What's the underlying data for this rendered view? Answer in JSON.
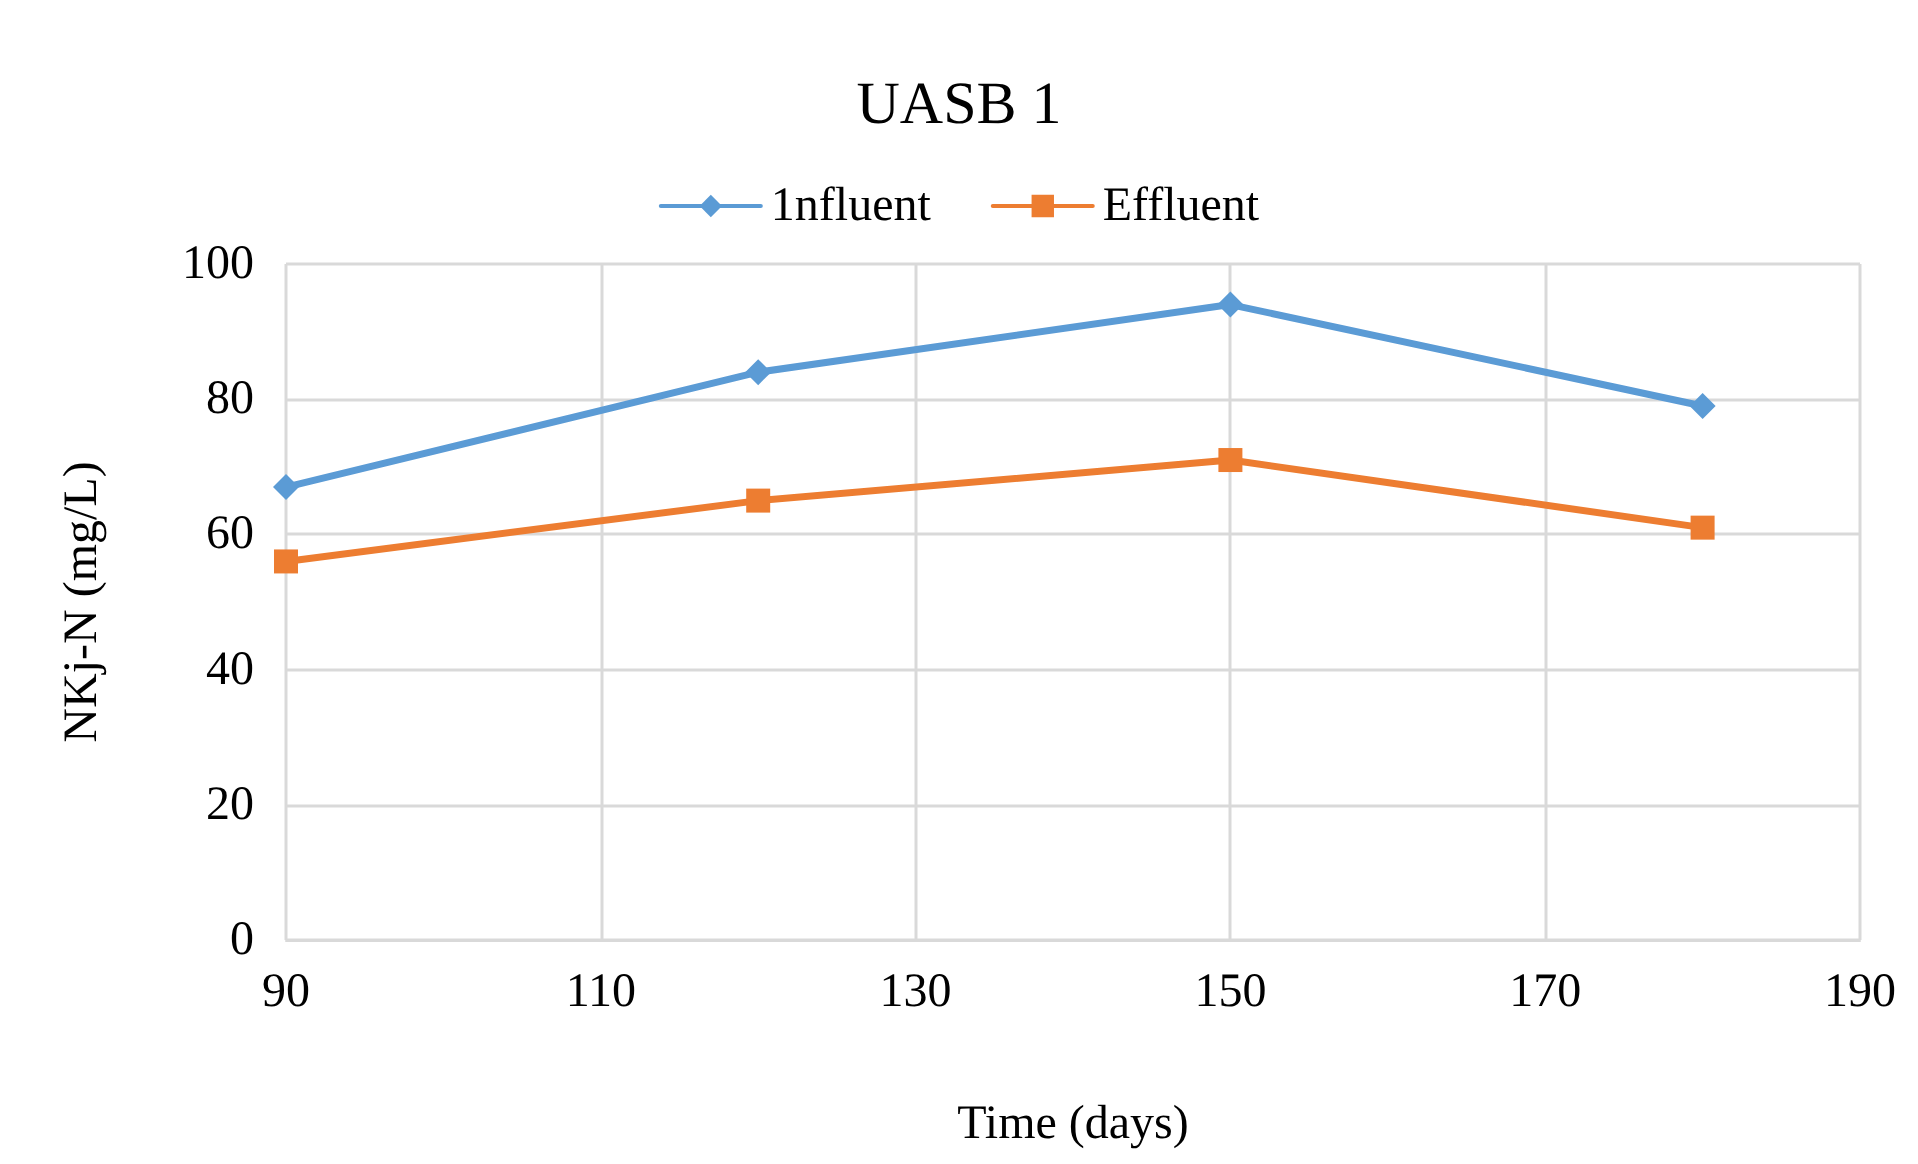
{
  "chart_data": {
    "type": "line",
    "title": "UASB 1",
    "xlabel": "Time (days)",
    "ylabel": "NKj-N (mg/L)",
    "x": [
      90,
      120,
      150,
      180
    ],
    "series": [
      {
        "name": "1nfluent",
        "color": "#5b9bd5",
        "marker": "diamond",
        "values": [
          67,
          84,
          94,
          79
        ]
      },
      {
        "name": "Effluent",
        "color": "#ed7d31",
        "marker": "square",
        "values": [
          56,
          65,
          71,
          61
        ]
      }
    ],
    "xlim": [
      90,
      190
    ],
    "xticks": [
      90,
      110,
      130,
      150,
      170,
      190
    ],
    "ylim": [
      0,
      100
    ],
    "yticks": [
      0,
      20,
      40,
      60,
      80,
      100
    ],
    "grid": true,
    "legend": "top",
    "line_style": "solid"
  }
}
